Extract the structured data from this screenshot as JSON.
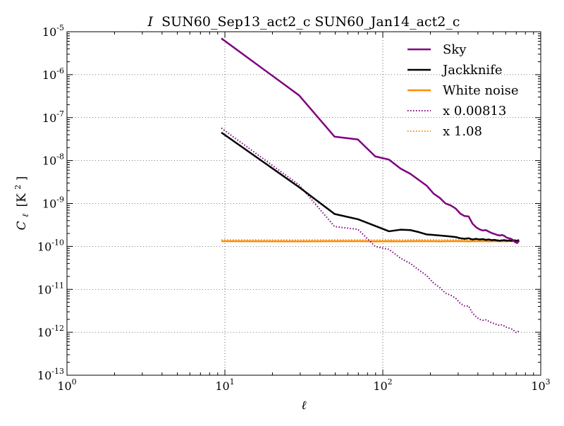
{
  "chart_data": {
    "type": "line",
    "title_symbol": "I",
    "title": "SUN60_Sep13_act2_c SUN60_Jan14_act2_c",
    "xlabel": "ℓ",
    "ylabel_main": "C",
    "ylabel_sub": "ℓ",
    "ylabel_unit": "[K",
    "ylabel_unit_sup": "2",
    "ylabel_unit_end": "]",
    "xscale": "log",
    "yscale": "log",
    "xlim": [
      1,
      1000
    ],
    "ylim": [
      1e-13,
      1e-05
    ],
    "grid": true,
    "legend_position": "top-right",
    "x_ticks": [
      {
        "value": 1,
        "base": "10",
        "exp": "0"
      },
      {
        "value": 10,
        "base": "10",
        "exp": "1"
      },
      {
        "value": 100,
        "base": "10",
        "exp": "2"
      },
      {
        "value": 1000,
        "base": "10",
        "exp": "3"
      }
    ],
    "y_ticks": [
      {
        "value": 1e-13,
        "base": "10",
        "exp": "-13"
      },
      {
        "value": 1e-12,
        "base": "10",
        "exp": "-12"
      },
      {
        "value": 1e-11,
        "base": "10",
        "exp": "-11"
      },
      {
        "value": 1e-10,
        "base": "10",
        "exp": "-10"
      },
      {
        "value": 1e-09,
        "base": "10",
        "exp": "-9"
      },
      {
        "value": 1e-08,
        "base": "10",
        "exp": "-8"
      },
      {
        "value": 1e-07,
        "base": "10",
        "exp": "-7"
      },
      {
        "value": 1e-06,
        "base": "10",
        "exp": "-6"
      },
      {
        "value": 1e-05,
        "base": "10",
        "exp": "-5"
      }
    ],
    "series": [
      {
        "name": "Sky",
        "color": "#800080",
        "style": "solid",
        "x": [
          9.5,
          29.5,
          49.5,
          69.5,
          89.5,
          109.5,
          129.5,
          149.5,
          169.5,
          189.5,
          209.5,
          229.5,
          249.5,
          269.5,
          289.5,
          309.5,
          329.5,
          349.5,
          369.5,
          389.5,
          409.5,
          429.5,
          449.5,
          469.5,
          489.5,
          509.5,
          529.5,
          549.5,
          569.5,
          589.5,
          609.5,
          629.5,
          649.5,
          669.5,
          689.5,
          709.5,
          729.5
        ],
        "y": [
          7e-06,
          3.3e-07,
          3.6e-08,
          3.1e-08,
          1.25e-08,
          1.05e-08,
          6.5e-09,
          4.9e-09,
          3.5e-09,
          2.6e-09,
          1.7e-09,
          1.35e-09,
          1e-09,
          9e-10,
          7.6e-10,
          5.8e-10,
          5.1e-10,
          5e-10,
          3.4e-10,
          2.8e-10,
          2.5e-10,
          2.35e-10,
          2.4e-10,
          2.2e-10,
          2.05e-10,
          1.95e-10,
          1.85e-10,
          1.8e-10,
          1.85e-10,
          1.75e-10,
          1.6e-10,
          1.55e-10,
          1.5e-10,
          1.4e-10,
          1.25e-10,
          1.2e-10,
          1.35e-10
        ]
      },
      {
        "name": "Jackknife",
        "color": "#000000",
        "style": "solid",
        "x": [
          9.5,
          29.5,
          49.5,
          69.5,
          89.5,
          109.5,
          129.5,
          149.5,
          169.5,
          189.5,
          209.5,
          229.5,
          249.5,
          269.5,
          289.5,
          309.5,
          329.5,
          349.5,
          369.5,
          389.5,
          409.5,
          429.5,
          449.5,
          469.5,
          489.5,
          509.5,
          529.5,
          549.5,
          569.5,
          589.5,
          609.5,
          629.5,
          649.5,
          669.5,
          689.5,
          709.5,
          729.5
        ],
        "y": [
          4.5e-08,
          2.4e-09,
          5.7e-10,
          4.3e-10,
          3e-10,
          2.25e-10,
          2.45e-10,
          2.4e-10,
          2.15e-10,
          1.9e-10,
          1.85e-10,
          1.8e-10,
          1.75e-10,
          1.7e-10,
          1.65e-10,
          1.55e-10,
          1.5e-10,
          1.55e-10,
          1.45e-10,
          1.5e-10,
          1.45e-10,
          1.48e-10,
          1.42e-10,
          1.45e-10,
          1.4e-10,
          1.42e-10,
          1.38e-10,
          1.35e-10,
          1.38e-10,
          1.4e-10,
          1.35e-10,
          1.38e-10,
          1.35e-10,
          1.37e-10,
          1.38e-10,
          1.35e-10,
          1.4e-10
        ]
      },
      {
        "name": "White noise",
        "color": "#FF8C00",
        "style": "solid",
        "x": [
          9.5,
          29.5,
          49.5,
          69.5,
          89.5,
          109.5,
          129.5,
          149.5,
          169.5,
          189.5,
          209.5,
          229.5,
          249.5,
          269.5,
          289.5,
          309.5,
          329.5,
          349.5,
          369.5,
          389.5,
          409.5,
          429.5,
          449.5,
          469.5,
          489.5,
          509.5,
          529.5,
          549.5,
          569.5,
          589.5,
          609.5,
          629.5,
          649.5,
          669.5,
          689.5,
          709.5,
          729.5
        ],
        "y": [
          1.32e-10,
          1.31e-10,
          1.32e-10,
          1.32e-10,
          1.31e-10,
          1.32e-10,
          1.31e-10,
          1.32e-10,
          1.33e-10,
          1.32e-10,
          1.32e-10,
          1.31e-10,
          1.32e-10,
          1.32e-10,
          1.33e-10,
          1.32e-10,
          1.32e-10,
          1.31e-10,
          1.32e-10,
          1.32e-10,
          1.33e-10,
          1.32e-10,
          1.32e-10,
          1.31e-10,
          1.32e-10,
          1.32e-10,
          1.33e-10,
          1.32e-10,
          1.32e-10,
          1.31e-10,
          1.32e-10,
          1.33e-10,
          1.32e-10,
          1.32e-10,
          1.31e-10,
          1.32e-10,
          1.32e-10
        ]
      },
      {
        "name": "x 0.00813",
        "color": "#800080",
        "style": "dotted",
        "x": [
          9.5,
          29.5,
          49.5,
          69.5,
          89.5,
          109.5,
          129.5,
          149.5,
          169.5,
          189.5,
          209.5,
          229.5,
          249.5,
          269.5,
          289.5,
          309.5,
          329.5,
          349.5,
          369.5,
          389.5,
          409.5,
          429.5,
          449.5,
          469.5,
          489.5,
          509.5,
          529.5,
          549.5,
          569.5,
          589.5,
          609.5,
          629.5,
          649.5,
          669.5,
          689.5,
          709.5,
          729.5
        ],
        "y": [
          5.7e-08,
          2.7e-09,
          2.9e-10,
          2.5e-10,
          1e-10,
          8.5e-11,
          5.3e-11,
          4e-11,
          2.8e-11,
          2.1e-11,
          1.4e-11,
          1.1e-11,
          8.1e-12,
          7.3e-12,
          6.2e-12,
          4.7e-12,
          4.1e-12,
          4.1e-12,
          2.8e-12,
          2.3e-12,
          2e-12,
          1.9e-12,
          1.95e-12,
          1.8e-12,
          1.65e-12,
          1.6e-12,
          1.5e-12,
          1.45e-12,
          1.5e-12,
          1.4e-12,
          1.3e-12,
          1.25e-12,
          1.2e-12,
          1.15e-12,
          1e-12,
          9.8e-13,
          1.1e-12
        ]
      },
      {
        "name": "x 1.08",
        "color": "#FF8C00",
        "style": "dotted",
        "x": [
          9.5,
          29.5,
          49.5,
          69.5,
          89.5,
          109.5,
          129.5,
          149.5,
          169.5,
          189.5,
          209.5,
          229.5,
          249.5,
          269.5,
          289.5,
          309.5,
          329.5,
          349.5,
          369.5,
          389.5,
          409.5,
          429.5,
          449.5,
          469.5,
          489.5,
          509.5,
          529.5,
          549.5,
          569.5,
          589.5,
          609.5,
          629.5,
          649.5,
          669.5,
          689.5,
          709.5,
          729.5
        ],
        "y": [
          1.42e-10,
          1.41e-10,
          1.42e-10,
          1.42e-10,
          1.41e-10,
          1.42e-10,
          1.41e-10,
          1.42e-10,
          1.44e-10,
          1.42e-10,
          1.42e-10,
          1.41e-10,
          1.42e-10,
          1.42e-10,
          1.44e-10,
          1.42e-10,
          1.42e-10,
          1.41e-10,
          1.42e-10,
          1.42e-10,
          1.44e-10,
          1.42e-10,
          1.42e-10,
          1.41e-10,
          1.42e-10,
          1.42e-10,
          1.44e-10,
          1.42e-10,
          1.42e-10,
          1.41e-10,
          1.42e-10,
          1.44e-10,
          1.42e-10,
          1.42e-10,
          1.41e-10,
          1.42e-10,
          1.42e-10
        ]
      }
    ]
  }
}
